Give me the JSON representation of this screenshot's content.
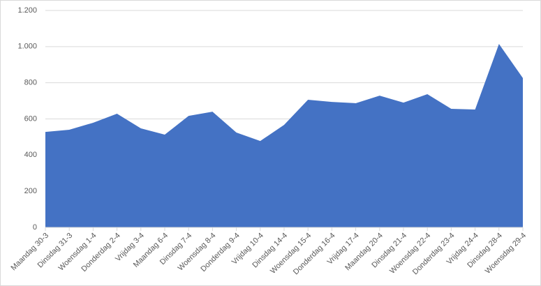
{
  "chart_data": {
    "type": "area",
    "categories": [
      "Maandag 30-3",
      "Dinsdag 31-3",
      "Woensdag 1-4",
      "Donderdag 2-4",
      "Vrijdag 3-4",
      "Maandag 6-4",
      "Dinsdag 7-4",
      "Woensdag 8-4",
      "Donderdag 9-4",
      "Vrijdag 10-4",
      "Dinsdag 14-4",
      "Woensdag 15-4",
      "Donderdag 16-4",
      "Vrijdag 17-4",
      "Maandag 20-4",
      "Dinsdag 21-4",
      "Woensdag 22-4",
      "Donderdag 23-4",
      "Vrijdag 24-4",
      "Dinsdag 28-4",
      "Woensdag 29-4"
    ],
    "values": [
      528,
      540,
      579,
      629,
      548,
      513,
      617,
      640,
      525,
      478,
      567,
      706,
      694,
      687,
      729,
      690,
      737,
      656,
      652,
      1015,
      826
    ],
    "color": "#4472c4",
    "ylim": [
      0,
      1200
    ],
    "yticks": [
      0,
      200,
      400,
      600,
      800,
      {
        "value": 1000,
        "label": "1.000"
      },
      {
        "value": 1200,
        "label": "1.200"
      }
    ],
    "grid": true
  }
}
